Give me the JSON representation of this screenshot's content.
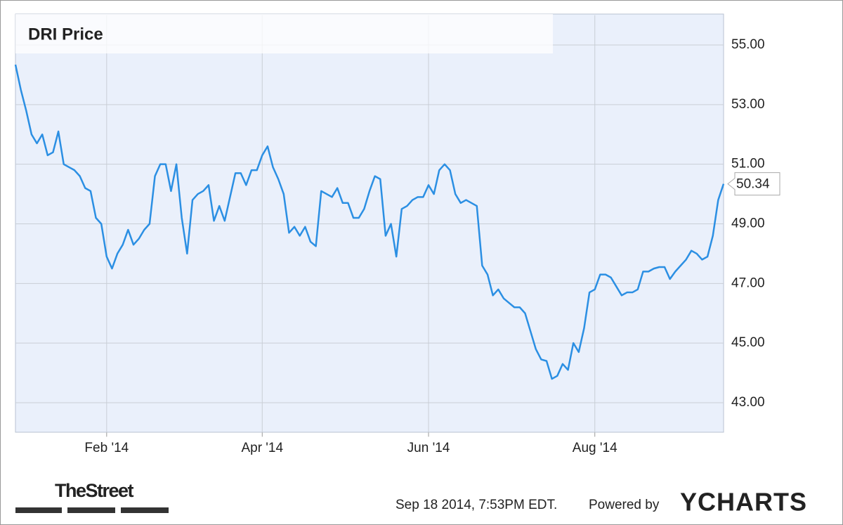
{
  "chart_data": {
    "type": "line",
    "title": "DRI Price",
    "categories": [
      null,
      null,
      null,
      null,
      null,
      null,
      null,
      null,
      null,
      null,
      null,
      null,
      null,
      null,
      null,
      null,
      null,
      "Feb '14",
      null,
      null,
      null,
      null,
      null,
      null,
      null,
      null,
      null,
      null,
      null,
      null,
      null,
      null,
      null,
      null,
      null,
      null,
      null,
      null,
      null,
      null,
      null,
      null,
      null,
      null,
      null,
      null,
      "Apr '14",
      null,
      null,
      null,
      null,
      null,
      null,
      null,
      null,
      null,
      null,
      null,
      null,
      null,
      null,
      null,
      null,
      null,
      null,
      null,
      null,
      null,
      null,
      null,
      null,
      null,
      null,
      null,
      null,
      null,
      null,
      "Jun '14",
      null,
      null,
      null,
      null,
      null,
      null,
      null,
      null,
      null,
      null,
      null,
      null,
      null,
      null,
      null,
      null,
      null,
      null,
      null,
      null,
      null,
      null,
      null,
      null,
      null,
      null,
      null,
      null,
      null,
      null,
      "Aug '14",
      null,
      null,
      null,
      null,
      null,
      null,
      null,
      null,
      null,
      null,
      null,
      null,
      null,
      null,
      null,
      null,
      null,
      null,
      null,
      null,
      null,
      null,
      null,
      null
    ],
    "values": [
      54.34,
      53.5,
      52.8,
      52.0,
      51.7,
      52.0,
      51.3,
      51.4,
      52.1,
      51.0,
      50.9,
      50.8,
      50.6,
      50.2,
      50.1,
      49.2,
      49.0,
      47.9,
      47.5,
      48.0,
      48.3,
      48.8,
      48.3,
      48.5,
      48.8,
      49.0,
      50.6,
      51.0,
      51.0,
      50.1,
      51.0,
      49.2,
      48.0,
      49.8,
      50.0,
      50.1,
      50.3,
      49.1,
      49.6,
      49.1,
      49.9,
      50.7,
      50.7,
      50.3,
      50.8,
      50.8,
      51.3,
      51.6,
      50.9,
      50.5,
      50.0,
      48.7,
      48.9,
      48.6,
      48.9,
      48.4,
      48.25,
      50.1,
      50.0,
      49.9,
      50.2,
      49.7,
      49.7,
      49.2,
      49.2,
      49.5,
      50.1,
      50.6,
      50.5,
      48.6,
      49.0,
      47.9,
      49.5,
      49.6,
      49.8,
      49.9,
      49.9,
      50.3,
      50.0,
      50.8,
      51.0,
      50.8,
      50.0,
      49.7,
      49.8,
      49.7,
      49.6,
      47.6,
      47.3,
      46.6,
      46.8,
      46.5,
      46.35,
      46.2,
      46.2,
      46.0,
      45.4,
      44.8,
      44.45,
      44.4,
      43.8,
      43.9,
      44.3,
      44.1,
      45.0,
      44.7,
      45.5,
      46.7,
      46.8,
      47.3,
      47.3,
      47.2,
      46.9,
      46.6,
      46.7,
      46.7,
      46.8,
      47.4,
      47.4,
      47.5,
      47.55,
      47.55,
      47.15,
      47.4,
      47.6,
      47.8,
      48.1,
      48.0,
      47.8,
      47.9,
      48.6,
      49.8,
      50.34
    ],
    "value_labels": [
      null,
      null,
      null,
      null,
      null,
      null,
      null,
      null,
      null,
      null,
      null,
      null,
      null,
      null,
      null,
      null,
      null,
      null,
      null,
      null,
      null,
      null,
      null,
      null,
      null,
      null,
      null,
      null,
      null,
      null,
      null,
      null,
      null,
      null,
      null,
      null,
      null,
      null,
      null,
      null,
      null,
      null,
      null,
      null,
      null,
      null,
      null,
      null,
      null,
      null,
      null,
      null,
      null,
      null,
      null,
      null,
      null,
      null,
      null,
      null,
      null,
      null,
      null,
      null,
      null,
      null,
      null,
      null,
      null,
      null,
      null,
      null,
      null,
      null,
      null,
      null,
      null,
      null,
      null,
      null,
      null,
      null,
      null,
      null,
      null,
      null,
      null,
      null,
      null,
      null,
      null,
      null,
      null,
      null,
      null,
      null,
      null,
      null,
      null,
      null,
      null,
      null,
      null,
      null,
      null,
      null,
      null,
      null,
      null,
      null,
      null,
      null,
      null,
      null,
      null,
      null,
      null,
      null,
      null,
      null,
      null,
      null,
      null,
      null,
      null,
      null,
      null,
      null,
      null,
      null,
      null,
      null,
      "50.34"
    ],
    "color": "#2b8fe3",
    "ylim": [
      42,
      56
    ],
    "yticks": [
      {
        "value": 43,
        "label": "43.00"
      },
      {
        "value": 45,
        "label": "45.00"
      },
      {
        "value": 47,
        "label": "47.00"
      },
      {
        "value": 49,
        "label": "49.00"
      },
      {
        "value": 51,
        "label": "51.00"
      },
      {
        "value": 53,
        "label": "53.00"
      },
      {
        "value": 55,
        "label": "55.00"
      }
    ],
    "grid": true,
    "source_logo": "TheStreet",
    "timestamp": "Sep 18 2014, 7:53PM EDT.",
    "powered_by": "Powered by",
    "brand": "YCHARTS"
  }
}
